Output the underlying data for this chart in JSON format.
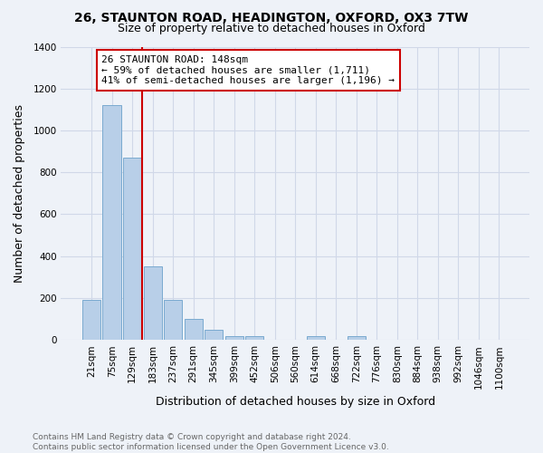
{
  "title_line1": "26, STAUNTON ROAD, HEADINGTON, OXFORD, OX3 7TW",
  "title_line2": "Size of property relative to detached houses in Oxford",
  "xlabel": "Distribution of detached houses by size in Oxford",
  "ylabel": "Number of detached properties",
  "categories": [
    "21sqm",
    "75sqm",
    "129sqm",
    "183sqm",
    "237sqm",
    "291sqm",
    "345sqm",
    "399sqm",
    "452sqm",
    "506sqm",
    "560sqm",
    "614sqm",
    "668sqm",
    "722sqm",
    "776sqm",
    "830sqm",
    "884sqm",
    "938sqm",
    "992sqm",
    "1046sqm",
    "1100sqm"
  ],
  "values": [
    190,
    1120,
    870,
    350,
    190,
    100,
    50,
    20,
    20,
    0,
    0,
    20,
    0,
    20,
    0,
    0,
    0,
    0,
    0,
    0,
    0
  ],
  "bar_color": "#b8cfe8",
  "bar_edge_color": "#7aaad0",
  "vline_x_idx": 2.5,
  "vline_color": "#cc0000",
  "annotation_text": "26 STAUNTON ROAD: 148sqm\n← 59% of detached houses are smaller (1,711)\n41% of semi-detached houses are larger (1,196) →",
  "annotation_box_color": "#ffffff",
  "annotation_box_edge": "#cc0000",
  "ylim": [
    0,
    1400
  ],
  "yticks": [
    0,
    200,
    400,
    600,
    800,
    1000,
    1200,
    1400
  ],
  "footnote": "Contains HM Land Registry data © Crown copyright and database right 2024.\nContains public sector information licensed under the Open Government Licence v3.0.",
  "bg_color": "#eef2f8",
  "grid_color": "#d0d8e8",
  "title_fontsize": 10,
  "subtitle_fontsize": 9,
  "tick_fontsize": 7.5,
  "label_fontsize": 9,
  "footnote_fontsize": 6.5
}
